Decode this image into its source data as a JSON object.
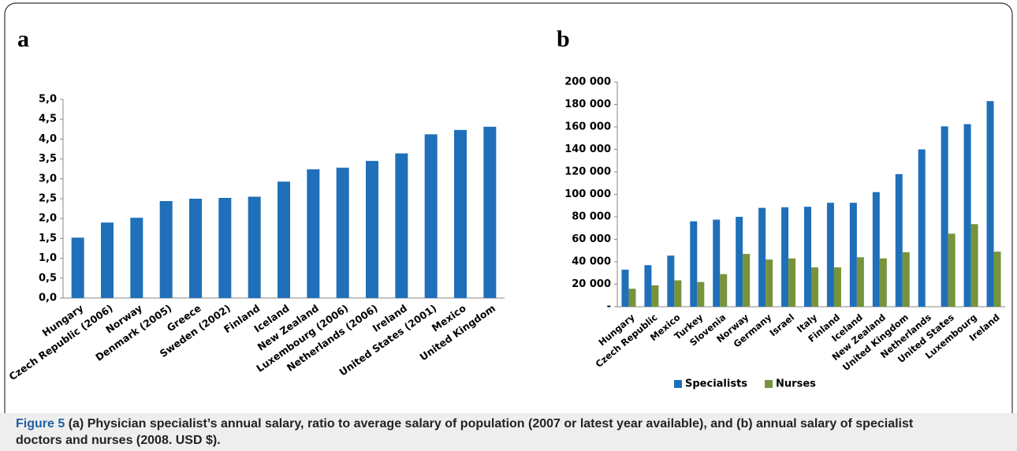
{
  "chart_data": [
    {
      "type": "bar",
      "label": "a",
      "categories": [
        "Hungary",
        "Czech Republic (2006)",
        "Norway",
        "Denmark (2005)",
        "Greece",
        "Sweden (2002)",
        "Finland",
        "Iceland",
        "New Zealand",
        "Luxembourg (2006)",
        "Netherlands (2006)",
        "Ireland",
        "United States (2001)",
        "Mexico",
        "United Kingdom"
      ],
      "values": [
        1.52,
        1.9,
        2.02,
        2.44,
        2.5,
        2.52,
        2.55,
        2.93,
        3.24,
        3.28,
        3.45,
        3.64,
        4.12,
        4.23,
        4.31
      ],
      "color": "#1f6fb9",
      "ylim": [
        0,
        5
      ],
      "yticks": [
        {
          "value": 0,
          "label": "0,0"
        },
        {
          "value": 0.5,
          "label": "0,5"
        },
        {
          "value": 1,
          "label": "1,0"
        },
        {
          "value": 1.5,
          "label": "1,5"
        },
        {
          "value": 2,
          "label": "2,0"
        },
        {
          "value": 2.5,
          "label": "2,5"
        },
        {
          "value": 3,
          "label": "3,0"
        },
        {
          "value": 3.5,
          "label": "3,5"
        },
        {
          "value": 4,
          "label": "4,0"
        },
        {
          "value": 4.5,
          "label": "4,5"
        },
        {
          "value": 5,
          "label": "5,0"
        }
      ],
      "grid": false
    },
    {
      "type": "bar",
      "label": "b",
      "categories": [
        "Hungary",
        "Czech Republic",
        "Mexico",
        "Turkey",
        "Slovenia",
        "Norway",
        "Germany",
        "Israel",
        "Italy",
        "Finland",
        "Iceland",
        "New Zealand",
        "United Kingdom",
        "Netherlands",
        "United States",
        "Luxembourg",
        "Ireland"
      ],
      "series": [
        {
          "name": "Specialists",
          "color": "#1f6fb9",
          "values": [
            33000,
            37000,
            45500,
            76000,
            77500,
            80000,
            88000,
            88500,
            89000,
            92500,
            92500,
            102000,
            118000,
            140000,
            160500,
            162500,
            183000
          ]
        },
        {
          "name": "Nurses",
          "color": "#77933c",
          "values": [
            16000,
            19000,
            23500,
            22000,
            29000,
            47000,
            42000,
            43000,
            35000,
            35000,
            44000,
            43000,
            48500,
            null,
            65000,
            73500,
            49000
          ]
        }
      ],
      "ylim": [
        0,
        200000
      ],
      "yticks": [
        {
          "value": 0,
          "label": "-"
        },
        {
          "value": 20000,
          "label": "20 000"
        },
        {
          "value": 40000,
          "label": "40 000"
        },
        {
          "value": 60000,
          "label": "60 000"
        },
        {
          "value": 80000,
          "label": "80 000"
        },
        {
          "value": 100000,
          "label": "100 000"
        },
        {
          "value": 120000,
          "label": "120 000"
        },
        {
          "value": 140000,
          "label": "140 000"
        },
        {
          "value": 160000,
          "label": "160 000"
        },
        {
          "value": 180000,
          "label": "180 000"
        },
        {
          "value": 200000,
          "label": "200 000"
        }
      ],
      "grid": false,
      "legend": "bottom"
    }
  ],
  "caption": {
    "label": "Figure 5",
    "text": "(a) Physician specialist’s annual salary, ratio to average salary of population (2007 or latest year available), and (b) annual salary of specialist doctors and nurses (2008. USD $)."
  }
}
